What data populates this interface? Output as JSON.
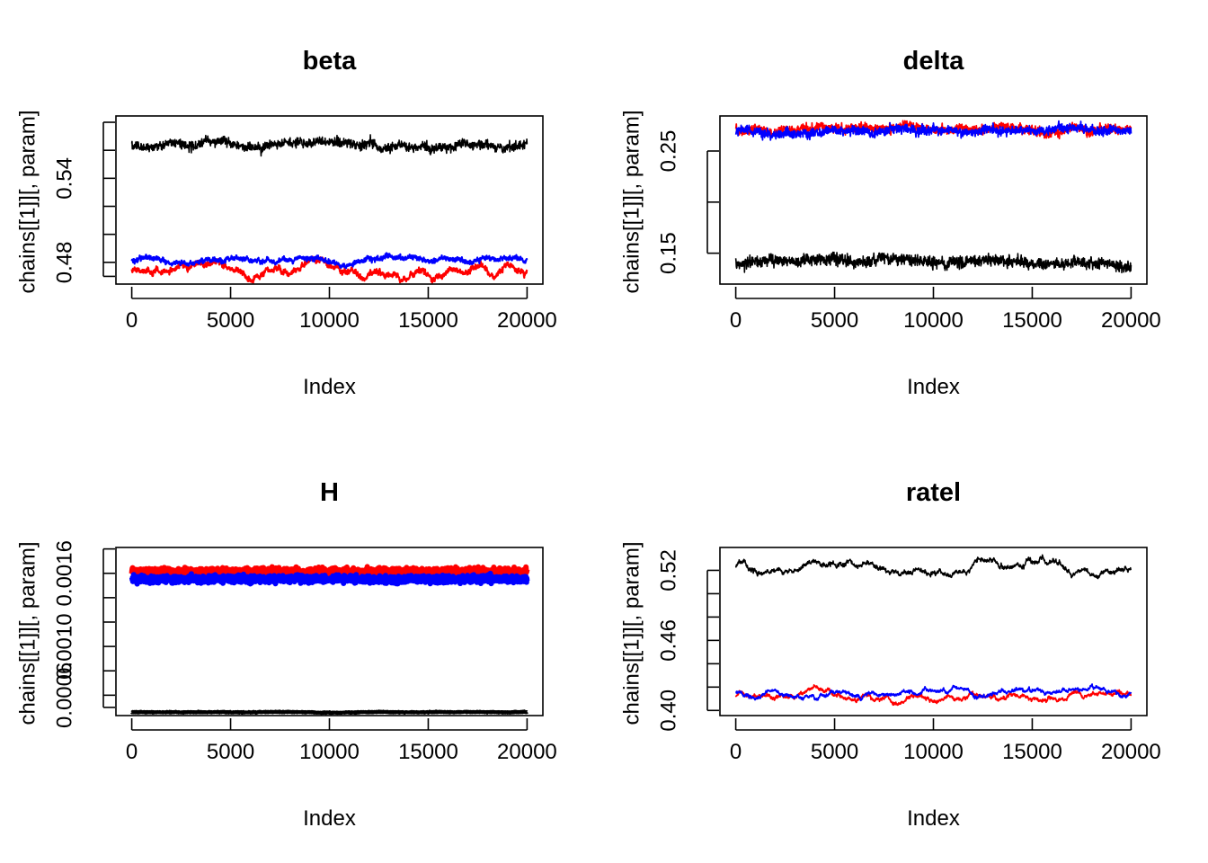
{
  "chart_data": [
    {
      "type": "line",
      "title": "beta",
      "xlabel": "Index",
      "ylabel": "chains[[1]][, param]",
      "xlim": [
        -800,
        20800
      ],
      "ylim": [
        0.4645,
        0.5845
      ],
      "x_ticks": [
        0,
        5000,
        10000,
        15000,
        20000
      ],
      "y_ticks": [
        0.47,
        0.48,
        0.5,
        0.52,
        0.54,
        0.56,
        0.58
      ],
      "y_tick_labels": [
        "",
        "0.48",
        "",
        "",
        "0.54",
        "",
        ""
      ],
      "n_iter": 20000,
      "series": [
        {
          "color": "#000000",
          "mean": 0.5635,
          "noise": 0.0022,
          "wander": 0.0018,
          "width": 1.6
        },
        {
          "color": "#ff0000",
          "mean": 0.4755,
          "noise": 0.0011,
          "wander": 0.0032,
          "width": 2.2
        },
        {
          "color": "#0000ff",
          "mean": 0.4812,
          "noise": 0.001,
          "wander": 0.002,
          "width": 2.2
        }
      ]
    },
    {
      "type": "line",
      "title": "delta",
      "xlabel": "Index",
      "ylabel": "chains[[1]][, param]",
      "xlim": [
        -800,
        20800
      ],
      "ylim": [
        0.1198,
        0.2843
      ],
      "x_ticks": [
        0,
        5000,
        10000,
        15000,
        20000
      ],
      "y_ticks": [
        0.15,
        0.2,
        0.25
      ],
      "y_tick_labels": [
        "0.15",
        "",
        "0.25"
      ],
      "n_iter": 20000,
      "series": [
        {
          "color": "#000000",
          "mean": 0.1415,
          "noise": 0.004,
          "wander": 0.002,
          "width": 1.6
        },
        {
          "color": "#ff0000",
          "mean": 0.2718,
          "noise": 0.003,
          "wander": 0.0025,
          "width": 1.8
        },
        {
          "color": "#0000ff",
          "mean": 0.269,
          "noise": 0.003,
          "wander": 0.002,
          "width": 1.8
        }
      ]
    },
    {
      "type": "line",
      "title": "H",
      "xlabel": "Index",
      "ylabel": "chains[[1]][, param]",
      "xlim": [
        -800,
        20800
      ],
      "ylim": [
        0.000433,
        0.001812
      ],
      "x_ticks": [
        0,
        5000,
        10000,
        15000,
        20000
      ],
      "y_ticks": [
        0.0005,
        0.0006,
        0.0008,
        0.001,
        0.0012,
        0.0014,
        0.0016,
        0.0018
      ],
      "y_tick_labels": [
        "",
        "0.0006",
        "",
        "0.0010",
        "",
        "",
        "0.0016",
        ""
      ],
      "n_iter": 20000,
      "series": [
        {
          "color": "#000000",
          "mean": 0.000461,
          "noise": 2.5e-06,
          "wander": 1.5e-06,
          "width": 4
        },
        {
          "color": "#ff0000",
          "mean": 0.001613,
          "noise": 2.2e-05,
          "wander": 0.0,
          "width": 6
        },
        {
          "color": "#0000ff",
          "mean": 0.001552,
          "noise": 2.1e-05,
          "wander": 0.0,
          "width": 6
        }
      ]
    },
    {
      "type": "line",
      "title": "ratel",
      "xlabel": "Index",
      "ylabel": "chains[[1]][, param]",
      "xlim": [
        -800,
        20800
      ],
      "ylim": [
        0.3956,
        0.5396
      ],
      "x_ticks": [
        0,
        5000,
        10000,
        15000,
        20000
      ],
      "y_ticks": [
        0.4,
        0.42,
        0.44,
        0.46,
        0.48,
        0.5,
        0.52
      ],
      "y_tick_labels": [
        "0.40",
        "",
        "",
        "0.46",
        "",
        "",
        "0.52"
      ],
      "n_iter": 20000,
      "series": [
        {
          "color": "#000000",
          "mean": 0.5235,
          "noise": 0.0008,
          "wander": 0.0035,
          "width": 1.6
        },
        {
          "color": "#ff0000",
          "mean": 0.4125,
          "noise": 0.0006,
          "wander": 0.003,
          "width": 1.8
        },
        {
          "color": "#0000ff",
          "mean": 0.415,
          "noise": 0.0006,
          "wander": 0.0025,
          "width": 1.8
        }
      ]
    }
  ]
}
